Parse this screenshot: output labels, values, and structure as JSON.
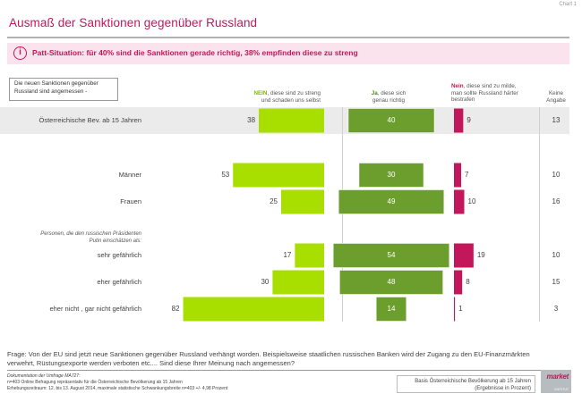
{
  "chart_label": "Chart 1",
  "title": "Ausmaß der Sanktionen gegenüber Russland",
  "callout": "Patt-Situation: für 40% sind die Sanktionen gerade richtig, 38% empfinden diese zu streng",
  "question_box": "Die neuen Sanktionen gegenüber Russland sind angemessen -",
  "headers": {
    "nein_bold": "NEIN",
    "nein_rest1": ", diese sind zu streng",
    "nein_line2": "und schaden uns selbst",
    "ja_bold": "Ja",
    "ja_rest1": ", diese sich",
    "ja_line2": "genau richtig",
    "mild_bold": "Nein",
    "mild_rest1": ", diese sind zu milde,",
    "mild_line2": "man sollte Russland härter",
    "mild_line3": "bestrafen",
    "keine_line1": "Keine",
    "keine_line2": "Angabe"
  },
  "putin_label_line1": "Personen, die den russischen Präsidenten",
  "putin_label_line2": "Putin einschätzen als:",
  "colors": {
    "nein": "#a8df00",
    "ja": "#6c9e2e",
    "mild": "#c2185b",
    "pink_text": "#c2185b"
  },
  "chart_data": {
    "type": "bar",
    "categories": [
      "Österreichische Bev. ab 15 Jahren",
      "Männer",
      "Frauen",
      "sehr gefährlich",
      "eher gefährlich",
      "eher nicht , gar nicht gefährlich"
    ],
    "series": [
      {
        "name": "NEIN, diese sind zu streng und schaden uns selbst",
        "values": [
          38,
          53,
          25,
          17,
          30,
          82
        ]
      },
      {
        "name": "Ja, diese sich genau richtig",
        "values": [
          40,
          30,
          49,
          54,
          48,
          14
        ]
      },
      {
        "name": "Nein, diese sind zu milde, man sollte Russland härter bestrafen",
        "values": [
          9,
          7,
          10,
          19,
          8,
          1
        ]
      },
      {
        "name": "Keine Angabe",
        "values": [
          13,
          10,
          16,
          10,
          15,
          3
        ]
      }
    ],
    "unit": "Prozent"
  },
  "footer_question": "Frage:  Von der EU sind jetzt neue Sanktionen gegenüber Russland verhängt worden. Beispielsweise staatlichen russischen Banken wird der Zugang zu den EU-Finanzmärkten verwehrt, Rüstungsexporte werden verboten etc.... Sind diese Ihrer Meinung nach angemessen?",
  "doc_line1": "Dokumentation der Umfrage MA727:",
  "doc_line2": "n=403 Online Befragung repräsentativ für die Österreichische Bevölkerung ab 15 Jahren",
  "doc_line3": "Erhebungszeitraum: 12. bis 13. August 2014, maximale statistische Schwankungsbreite n=403 +/- 4,98 Prozent",
  "basis_line1": "Basis Österreichische Bevölkerung ab 15 Jahren",
  "basis_line2": "(Ergebnisse in Prozent)",
  "logo_text": "market",
  "logo_sub": "INSTITUT"
}
